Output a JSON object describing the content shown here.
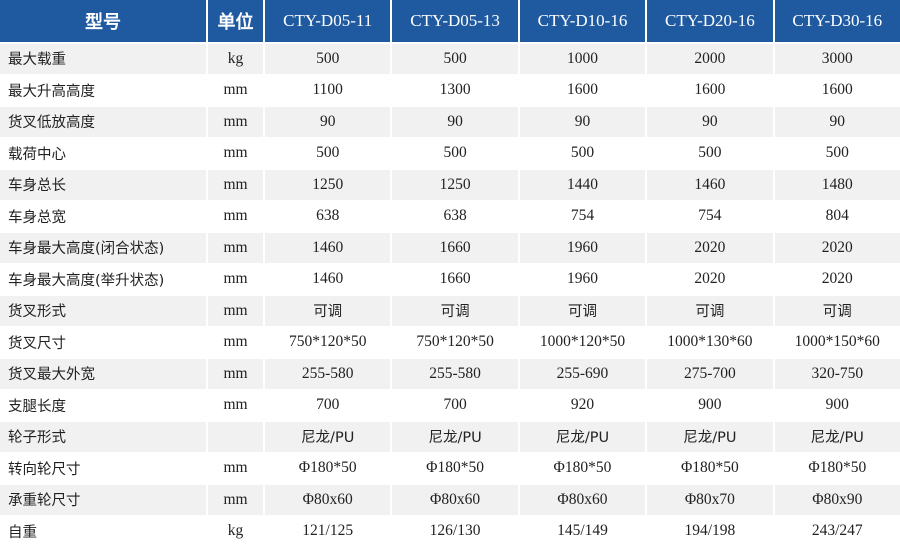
{
  "header": {
    "model": "型号",
    "unit": "单位",
    "models": [
      "CTY-D05-11",
      "CTY-D05-13",
      "CTY-D10-16",
      "CTY-D20-16",
      "CTY-D30-16"
    ]
  },
  "colors": {
    "header_bg": "#1f5aa0",
    "row_alt": "#f1f1f1"
  },
  "rows": [
    {
      "name": "最大载重",
      "unit": "kg",
      "values": [
        "500",
        "500",
        "1000",
        "2000",
        "3000"
      ]
    },
    {
      "name": "最大升高高度",
      "unit": "mm",
      "values": [
        "1100",
        "1300",
        "1600",
        "1600",
        "1600"
      ]
    },
    {
      "name": "货叉低放高度",
      "unit": "mm",
      "values": [
        "90",
        "90",
        "90",
        "90",
        "90"
      ]
    },
    {
      "name": "载荷中心",
      "unit": "mm",
      "values": [
        "500",
        "500",
        "500",
        "500",
        "500"
      ]
    },
    {
      "name": "车身总长",
      "unit": "mm",
      "values": [
        "1250",
        "1250",
        "1440",
        "1460",
        "1480"
      ]
    },
    {
      "name": "车身总宽",
      "unit": "mm",
      "values": [
        "638",
        "638",
        "754",
        "754",
        "804"
      ]
    },
    {
      "name": "车身最大高度(闭合状态)",
      "unit": "mm",
      "values": [
        "1460",
        "1660",
        "1960",
        "2020",
        "2020"
      ]
    },
    {
      "name": "车身最大高度(举升状态)",
      "unit": "mm",
      "values": [
        "1460",
        "1660",
        "1960",
        "2020",
        "2020"
      ]
    },
    {
      "name": "货叉形式",
      "unit": "mm",
      "values": [
        "可调",
        "可调",
        "可调",
        "可调",
        "可调"
      ]
    },
    {
      "name": "货叉尺寸",
      "unit": "mm",
      "values": [
        "750*120*50",
        "750*120*50",
        "1000*120*50",
        "1000*130*60",
        "1000*150*60"
      ]
    },
    {
      "name": "货叉最大外宽",
      "unit": "mm",
      "values": [
        "255-580",
        "255-580",
        "255-690",
        "275-700",
        "320-750"
      ]
    },
    {
      "name": "支腿长度",
      "unit": "mm",
      "values": [
        "700",
        "700",
        "920",
        "900",
        "900"
      ]
    },
    {
      "name": "轮子形式",
      "unit": "",
      "values": [
        "尼龙/PU",
        "尼龙/PU",
        "尼龙/PU",
        "尼龙/PU",
        "尼龙/PU"
      ]
    },
    {
      "name": "转向轮尺寸",
      "unit": "mm",
      "values": [
        "Φ180*50",
        "Φ180*50",
        "Φ180*50",
        "Φ180*50",
        "Φ180*50"
      ]
    },
    {
      "name": "承重轮尺寸",
      "unit": "mm",
      "values": [
        "Φ80x60",
        "Φ80x60",
        "Φ80x60",
        "Φ80x70",
        "Φ80x90"
      ]
    },
    {
      "name": "自重",
      "unit": "kg",
      "values": [
        "121/125",
        "126/130",
        "145/149",
        "194/198",
        "243/247"
      ]
    }
  ]
}
